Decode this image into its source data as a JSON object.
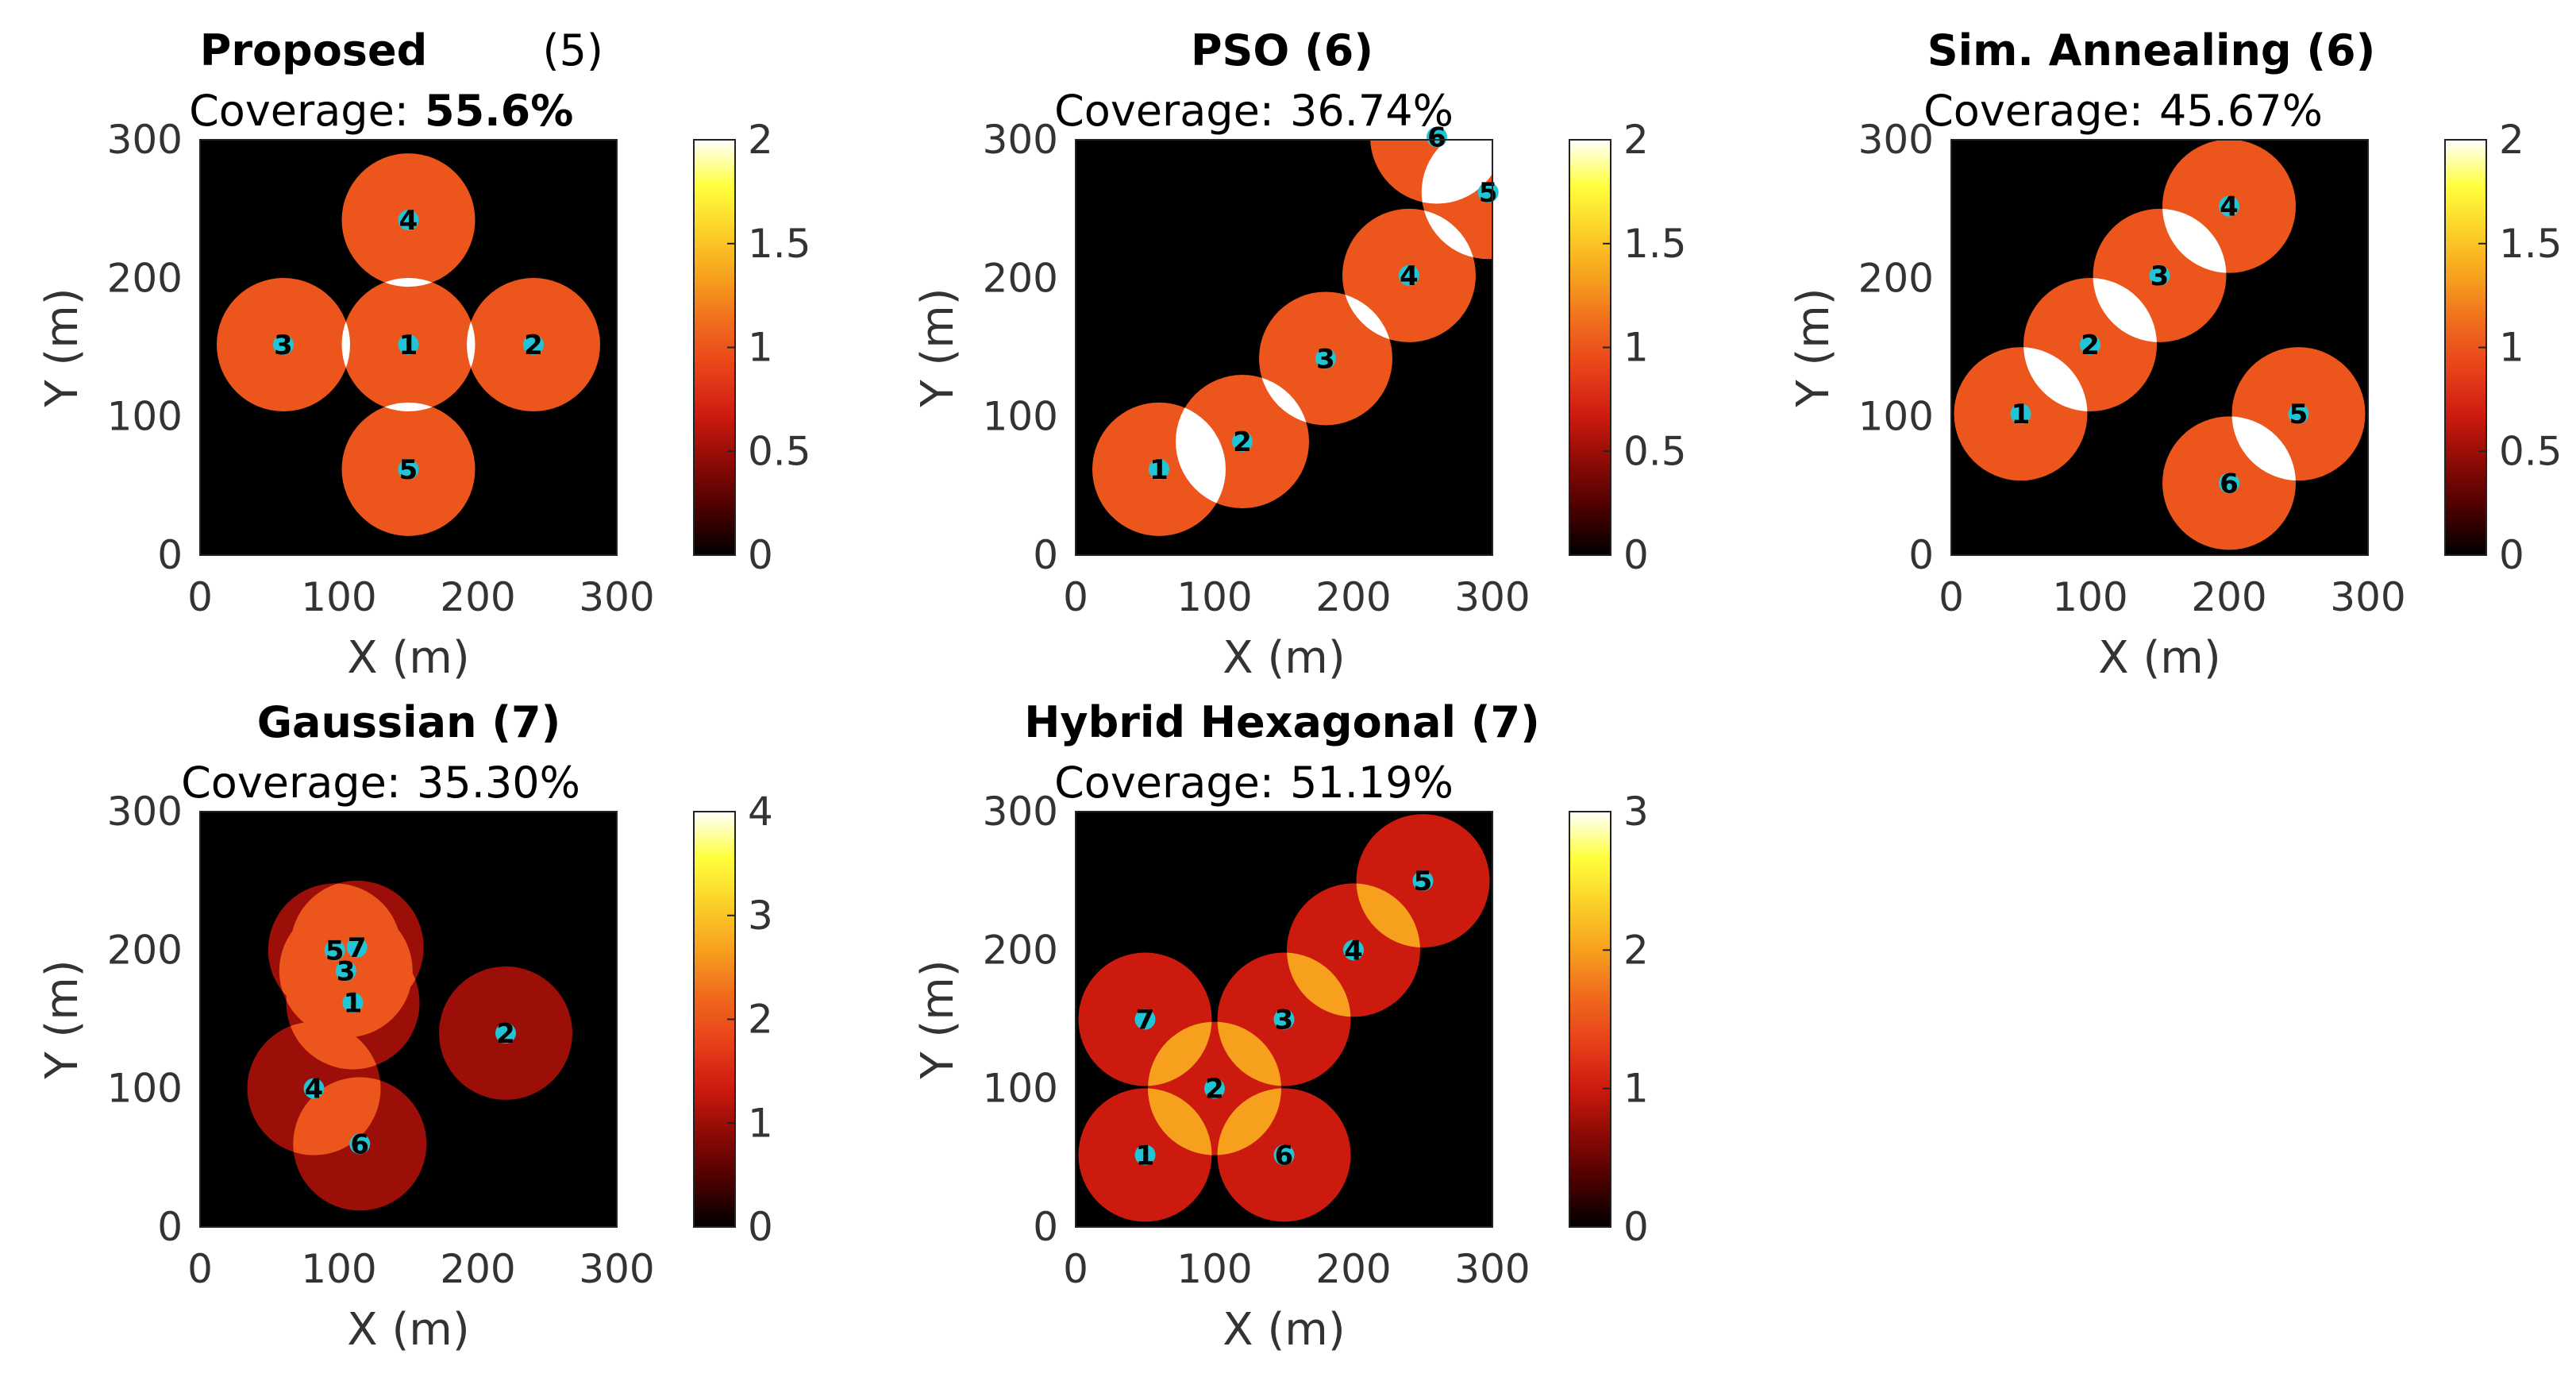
{
  "figure": {
    "colormap": [
      "#000000",
      "#4a0000",
      "#8c0a05",
      "#cc1a0f",
      "#e8401a",
      "#f06a1c",
      "#f7a01e",
      "#fbd028",
      "#ffff3c",
      "#ffffff"
    ],
    "marker_color": "#22c5d6"
  },
  "chart_data": [
    {
      "type": "heatmap",
      "title": "Proposed",
      "title_count": "(5)",
      "subtitle_label": "Coverage:",
      "subtitle_value": "55.6%",
      "xlabel": "X (m)",
      "ylabel": "Y (m)",
      "xlim": [
        0,
        300
      ],
      "ylim": [
        0,
        300
      ],
      "xticks": [
        "0",
        "100",
        "200",
        "300"
      ],
      "yticks": [
        "0",
        "100",
        "200",
        "300"
      ],
      "sensing_radius": 48,
      "clim": [
        0,
        2
      ],
      "cbar_ticks": [
        "0",
        "0.5",
        "1",
        "1.5",
        "2"
      ],
      "sensors": [
        {
          "id": "1",
          "x": 150,
          "y": 152
        },
        {
          "id": "2",
          "x": 240,
          "y": 152
        },
        {
          "id": "3",
          "x": 60,
          "y": 152
        },
        {
          "id": "4",
          "x": 150,
          "y": 242
        },
        {
          "id": "5",
          "x": 150,
          "y": 62
        }
      ]
    },
    {
      "type": "heatmap",
      "title": "PSO (6)",
      "subtitle_label": "Coverage:",
      "subtitle_value": "36.74%",
      "xlabel": "X (m)",
      "ylabel": "Y (m)",
      "xlim": [
        0,
        300
      ],
      "ylim": [
        0,
        300
      ],
      "xticks": [
        "0",
        "100",
        "200",
        "300"
      ],
      "yticks": [
        "0",
        "100",
        "200",
        "300"
      ],
      "sensing_radius": 48,
      "clim": [
        0,
        2
      ],
      "cbar_ticks": [
        "0",
        "0.5",
        "1",
        "1.5",
        "2"
      ],
      "sensors": [
        {
          "id": "1",
          "x": 60,
          "y": 62
        },
        {
          "id": "2",
          "x": 120,
          "y": 82
        },
        {
          "id": "3",
          "x": 180,
          "y": 142
        },
        {
          "id": "4",
          "x": 240,
          "y": 202
        },
        {
          "id": "5",
          "x": 297,
          "y": 262
        },
        {
          "id": "6",
          "x": 260,
          "y": 302
        }
      ]
    },
    {
      "type": "heatmap",
      "title": "Sim. Annealing (6)",
      "subtitle_label": "Coverage:",
      "subtitle_value": "45.67%",
      "xlabel": "X (m)",
      "ylabel": "Y (m)",
      "xlim": [
        0,
        300
      ],
      "ylim": [
        0,
        300
      ],
      "xticks": [
        "0",
        "100",
        "200",
        "300"
      ],
      "yticks": [
        "0",
        "100",
        "200",
        "300"
      ],
      "sensing_radius": 48,
      "clim": [
        0,
        2
      ],
      "cbar_ticks": [
        "0",
        "0.5",
        "1",
        "1.5",
        "2"
      ],
      "sensors": [
        {
          "id": "1",
          "x": 50,
          "y": 102
        },
        {
          "id": "2",
          "x": 100,
          "y": 152
        },
        {
          "id": "3",
          "x": 150,
          "y": 202
        },
        {
          "id": "4",
          "x": 200,
          "y": 252
        },
        {
          "id": "5",
          "x": 250,
          "y": 102
        },
        {
          "id": "6",
          "x": 200,
          "y": 52
        }
      ]
    },
    {
      "type": "heatmap",
      "title": "Gaussian (7)",
      "subtitle_label": "Coverage:",
      "subtitle_value": "35.30%",
      "xlabel": "X (m)",
      "ylabel": "Y (m)",
      "xlim": [
        0,
        300
      ],
      "ylim": [
        0,
        300
      ],
      "xticks": [
        "0",
        "100",
        "200",
        "300"
      ],
      "yticks": [
        "0",
        "100",
        "200",
        "300"
      ],
      "sensing_radius": 48,
      "clim": [
        0,
        4
      ],
      "cbar_ticks": [
        "0",
        "1",
        "2",
        "3",
        "4"
      ],
      "sensors": [
        {
          "id": "1",
          "x": 110,
          "y": 162
        },
        {
          "id": "2",
          "x": 220,
          "y": 140
        },
        {
          "id": "3",
          "x": 105,
          "y": 185
        },
        {
          "id": "4",
          "x": 82,
          "y": 100
        },
        {
          "id": "5",
          "x": 97,
          "y": 200
        },
        {
          "id": "6",
          "x": 115,
          "y": 60
        },
        {
          "id": "7",
          "x": 113,
          "y": 202
        }
      ]
    },
    {
      "type": "heatmap",
      "title": "Hybrid Hexagonal (7)",
      "subtitle_label": "Coverage:",
      "subtitle_value": "51.19%",
      "xlabel": "X (m)",
      "ylabel": "Y (m)",
      "xlim": [
        0,
        300
      ],
      "ylim": [
        0,
        300
      ],
      "xticks": [
        "0",
        "100",
        "200",
        "300"
      ],
      "yticks": [
        "0",
        "100",
        "200",
        "300"
      ],
      "sensing_radius": 48,
      "clim": [
        0,
        3
      ],
      "cbar_ticks": [
        "0",
        "1",
        "2",
        "3"
      ],
      "sensors": [
        {
          "id": "1",
          "x": 50,
          "y": 52
        },
        {
          "id": "2",
          "x": 100,
          "y": 100
        },
        {
          "id": "3",
          "x": 150,
          "y": 150
        },
        {
          "id": "4",
          "x": 200,
          "y": 200
        },
        {
          "id": "5",
          "x": 250,
          "y": 250
        },
        {
          "id": "6",
          "x": 150,
          "y": 52
        },
        {
          "id": "7",
          "x": 50,
          "y": 150
        }
      ]
    }
  ]
}
